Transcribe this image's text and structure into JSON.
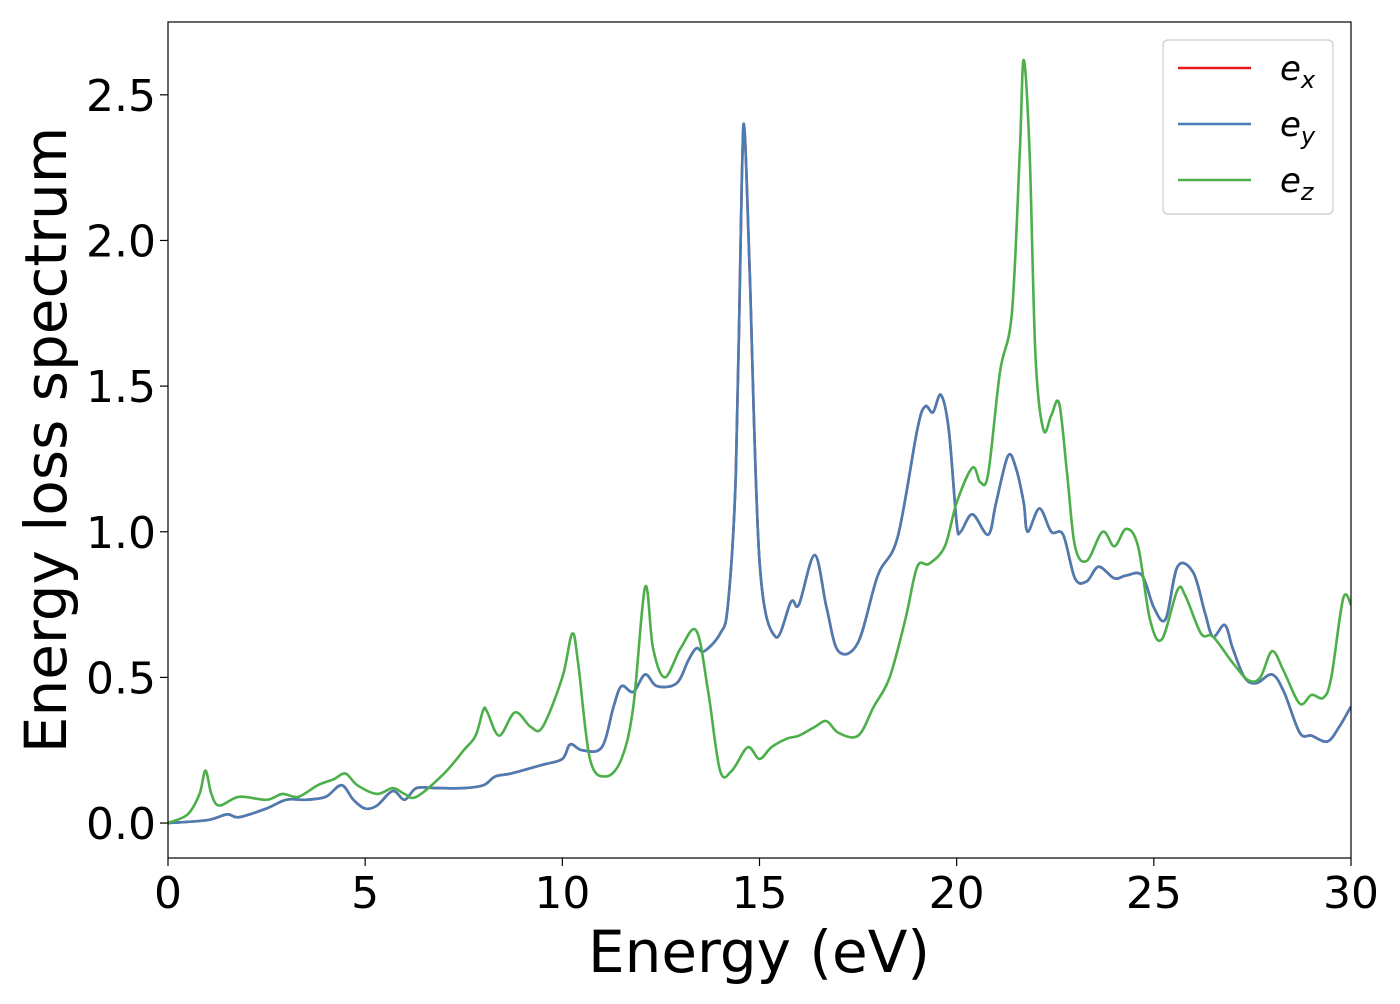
{
  "chart_data": {
    "type": "line",
    "title": "",
    "xlabel": "Energy (eV)",
    "ylabel": "Energy loss spectrum",
    "xlim": [
      0,
      30
    ],
    "ylim": [
      -0.12,
      2.75
    ],
    "xticks": [
      0,
      5,
      10,
      15,
      20,
      25,
      30
    ],
    "xtick_labels": [
      "0",
      "5",
      "10",
      "15",
      "20",
      "25",
      "30"
    ],
    "yticks": [
      0.0,
      0.5,
      1.0,
      1.5,
      2.0,
      2.5
    ],
    "ytick_labels": [
      "0.0",
      "0.5",
      "1.0",
      "1.5",
      "2.0",
      "2.5"
    ],
    "grid": false,
    "legend_position": "top-right",
    "series": [
      {
        "name": "e",
        "sub": "x",
        "color": "#e41a1c",
        "points": [
          [
            0,
            0
          ],
          [
            1,
            0.01
          ],
          [
            1.5,
            0.03
          ],
          [
            1.8,
            0.02
          ],
          [
            2.5,
            0.05
          ],
          [
            3,
            0.08
          ],
          [
            3.5,
            0.08
          ],
          [
            4,
            0.09
          ],
          [
            4.4,
            0.13
          ],
          [
            4.7,
            0.08
          ],
          [
            5,
            0.05
          ],
          [
            5.3,
            0.06
          ],
          [
            5.7,
            0.11
          ],
          [
            6,
            0.08
          ],
          [
            6.3,
            0.12
          ],
          [
            6.8,
            0.12
          ],
          [
            7.5,
            0.12
          ],
          [
            8,
            0.13
          ],
          [
            8.3,
            0.16
          ],
          [
            8.7,
            0.17
          ],
          [
            9.5,
            0.2
          ],
          [
            10,
            0.22
          ],
          [
            10.2,
            0.27
          ],
          [
            10.5,
            0.25
          ],
          [
            11,
            0.26
          ],
          [
            11.3,
            0.4
          ],
          [
            11.5,
            0.47
          ],
          [
            11.8,
            0.45
          ],
          [
            12.1,
            0.51
          ],
          [
            12.4,
            0.47
          ],
          [
            12.9,
            0.48
          ],
          [
            13.2,
            0.56
          ],
          [
            13.4,
            0.6
          ],
          [
            13.6,
            0.59
          ],
          [
            14,
            0.65
          ],
          [
            14.2,
            0.75
          ],
          [
            14.4,
            1.2
          ],
          [
            14.55,
            2.2
          ],
          [
            14.62,
            2.38
          ],
          [
            14.75,
            1.9
          ],
          [
            15,
            0.9
          ],
          [
            15.4,
            0.64
          ],
          [
            15.8,
            0.76
          ],
          [
            16,
            0.75
          ],
          [
            16.4,
            0.92
          ],
          [
            16.7,
            0.74
          ],
          [
            17,
            0.59
          ],
          [
            17.5,
            0.62
          ],
          [
            18,
            0.85
          ],
          [
            18.5,
            0.98
          ],
          [
            19,
            1.35
          ],
          [
            19.2,
            1.43
          ],
          [
            19.4,
            1.41
          ],
          [
            19.6,
            1.47
          ],
          [
            19.8,
            1.35
          ],
          [
            20,
            1.03
          ],
          [
            20.1,
            1.0
          ],
          [
            20.4,
            1.06
          ],
          [
            20.8,
            0.99
          ],
          [
            21,
            1.1
          ],
          [
            21.3,
            1.26
          ],
          [
            21.5,
            1.22
          ],
          [
            21.7,
            1.1
          ],
          [
            21.8,
            1.0
          ],
          [
            22.1,
            1.08
          ],
          [
            22.4,
            1.0
          ],
          [
            22.7,
            0.99
          ],
          [
            23,
            0.84
          ],
          [
            23.3,
            0.83
          ],
          [
            23.6,
            0.88
          ],
          [
            24,
            0.84
          ],
          [
            24.3,
            0.85
          ],
          [
            24.7,
            0.85
          ],
          [
            25,
            0.74
          ],
          [
            25.3,
            0.7
          ],
          [
            25.6,
            0.88
          ],
          [
            26,
            0.86
          ],
          [
            26.3,
            0.72
          ],
          [
            26.5,
            0.64
          ],
          [
            26.8,
            0.68
          ],
          [
            27,
            0.6
          ],
          [
            27.3,
            0.5
          ],
          [
            27.6,
            0.48
          ],
          [
            28,
            0.51
          ],
          [
            28.3,
            0.45
          ],
          [
            28.7,
            0.31
          ],
          [
            29,
            0.3
          ],
          [
            29.4,
            0.28
          ],
          [
            29.7,
            0.33
          ],
          [
            30,
            0.4
          ]
        ]
      },
      {
        "name": "e",
        "sub": "y",
        "color": "#4a7db3",
        "points": [
          [
            0,
            0
          ],
          [
            1,
            0.01
          ],
          [
            1.5,
            0.03
          ],
          [
            1.8,
            0.02
          ],
          [
            2.5,
            0.05
          ],
          [
            3,
            0.08
          ],
          [
            3.5,
            0.08
          ],
          [
            4,
            0.09
          ],
          [
            4.4,
            0.13
          ],
          [
            4.7,
            0.08
          ],
          [
            5,
            0.05
          ],
          [
            5.3,
            0.06
          ],
          [
            5.7,
            0.11
          ],
          [
            6,
            0.08
          ],
          [
            6.3,
            0.12
          ],
          [
            6.8,
            0.12
          ],
          [
            7.5,
            0.12
          ],
          [
            8,
            0.13
          ],
          [
            8.3,
            0.16
          ],
          [
            8.7,
            0.17
          ],
          [
            9.5,
            0.2
          ],
          [
            10,
            0.22
          ],
          [
            10.2,
            0.27
          ],
          [
            10.5,
            0.25
          ],
          [
            11,
            0.26
          ],
          [
            11.3,
            0.4
          ],
          [
            11.5,
            0.47
          ],
          [
            11.8,
            0.45
          ],
          [
            12.1,
            0.51
          ],
          [
            12.4,
            0.47
          ],
          [
            12.9,
            0.48
          ],
          [
            13.2,
            0.56
          ],
          [
            13.4,
            0.6
          ],
          [
            13.6,
            0.59
          ],
          [
            14,
            0.65
          ],
          [
            14.2,
            0.75
          ],
          [
            14.4,
            1.2
          ],
          [
            14.55,
            2.2
          ],
          [
            14.62,
            2.38
          ],
          [
            14.75,
            1.9
          ],
          [
            15,
            0.9
          ],
          [
            15.4,
            0.64
          ],
          [
            15.8,
            0.76
          ],
          [
            16,
            0.75
          ],
          [
            16.4,
            0.92
          ],
          [
            16.7,
            0.74
          ],
          [
            17,
            0.59
          ],
          [
            17.5,
            0.62
          ],
          [
            18,
            0.85
          ],
          [
            18.5,
            0.98
          ],
          [
            19,
            1.35
          ],
          [
            19.2,
            1.43
          ],
          [
            19.4,
            1.41
          ],
          [
            19.6,
            1.47
          ],
          [
            19.8,
            1.35
          ],
          [
            20,
            1.03
          ],
          [
            20.1,
            1.0
          ],
          [
            20.4,
            1.06
          ],
          [
            20.8,
            0.99
          ],
          [
            21,
            1.1
          ],
          [
            21.3,
            1.26
          ],
          [
            21.5,
            1.22
          ],
          [
            21.7,
            1.1
          ],
          [
            21.8,
            1.0
          ],
          [
            22.1,
            1.08
          ],
          [
            22.4,
            1.0
          ],
          [
            22.7,
            0.99
          ],
          [
            23,
            0.84
          ],
          [
            23.3,
            0.83
          ],
          [
            23.6,
            0.88
          ],
          [
            24,
            0.84
          ],
          [
            24.3,
            0.85
          ],
          [
            24.7,
            0.85
          ],
          [
            25,
            0.74
          ],
          [
            25.3,
            0.7
          ],
          [
            25.6,
            0.88
          ],
          [
            26,
            0.86
          ],
          [
            26.3,
            0.72
          ],
          [
            26.5,
            0.64
          ],
          [
            26.8,
            0.68
          ],
          [
            27,
            0.6
          ],
          [
            27.3,
            0.5
          ],
          [
            27.6,
            0.48
          ],
          [
            28,
            0.51
          ],
          [
            28.3,
            0.45
          ],
          [
            28.7,
            0.31
          ],
          [
            29,
            0.3
          ],
          [
            29.4,
            0.28
          ],
          [
            29.7,
            0.33
          ],
          [
            30,
            0.4
          ]
        ]
      },
      {
        "name": "e",
        "sub": "z",
        "color": "#4daf4a",
        "points": [
          [
            0,
            0
          ],
          [
            0.5,
            0.03
          ],
          [
            0.8,
            0.1
          ],
          [
            0.95,
            0.18
          ],
          [
            1.1,
            0.1
          ],
          [
            1.3,
            0.06
          ],
          [
            1.8,
            0.09
          ],
          [
            2.5,
            0.08
          ],
          [
            2.9,
            0.1
          ],
          [
            3.3,
            0.09
          ],
          [
            3.8,
            0.13
          ],
          [
            4.2,
            0.15
          ],
          [
            4.5,
            0.17
          ],
          [
            4.8,
            0.13
          ],
          [
            5.3,
            0.1
          ],
          [
            5.7,
            0.12
          ],
          [
            6,
            0.1
          ],
          [
            6.3,
            0.09
          ],
          [
            7,
            0.17
          ],
          [
            7.5,
            0.25
          ],
          [
            7.8,
            0.3
          ],
          [
            8,
            0.39
          ],
          [
            8.1,
            0.38
          ],
          [
            8.4,
            0.3
          ],
          [
            8.8,
            0.38
          ],
          [
            9.2,
            0.33
          ],
          [
            9.5,
            0.33
          ],
          [
            10,
            0.5
          ],
          [
            10.25,
            0.65
          ],
          [
            10.4,
            0.55
          ],
          [
            10.7,
            0.22
          ],
          [
            11.1,
            0.16
          ],
          [
            11.5,
            0.22
          ],
          [
            11.8,
            0.4
          ],
          [
            12.1,
            0.81
          ],
          [
            12.3,
            0.6
          ],
          [
            12.6,
            0.5
          ],
          [
            13,
            0.6
          ],
          [
            13.4,
            0.66
          ],
          [
            13.7,
            0.45
          ],
          [
            14,
            0.18
          ],
          [
            14.3,
            0.18
          ],
          [
            14.7,
            0.26
          ],
          [
            15,
            0.22
          ],
          [
            15.3,
            0.26
          ],
          [
            15.7,
            0.29
          ],
          [
            16,
            0.3
          ],
          [
            16.4,
            0.33
          ],
          [
            16.7,
            0.35
          ],
          [
            17,
            0.31
          ],
          [
            17.5,
            0.3
          ],
          [
            17.9,
            0.4
          ],
          [
            18.3,
            0.5
          ],
          [
            18.7,
            0.7
          ],
          [
            19,
            0.88
          ],
          [
            19.3,
            0.89
          ],
          [
            19.7,
            0.95
          ],
          [
            20,
            1.1
          ],
          [
            20.4,
            1.22
          ],
          [
            20.6,
            1.17
          ],
          [
            20.8,
            1.2
          ],
          [
            21.1,
            1.55
          ],
          [
            21.4,
            1.75
          ],
          [
            21.6,
            2.3
          ],
          [
            21.7,
            2.62
          ],
          [
            21.85,
            2.3
          ],
          [
            22,
            1.6
          ],
          [
            22.2,
            1.35
          ],
          [
            22.4,
            1.4
          ],
          [
            22.6,
            1.44
          ],
          [
            22.8,
            1.2
          ],
          [
            23,
            0.95
          ],
          [
            23.3,
            0.9
          ],
          [
            23.7,
            1.0
          ],
          [
            24,
            0.95
          ],
          [
            24.3,
            1.01
          ],
          [
            24.6,
            0.95
          ],
          [
            24.9,
            0.7
          ],
          [
            25.2,
            0.63
          ],
          [
            25.6,
            0.8
          ],
          [
            25.8,
            0.78
          ],
          [
            26.2,
            0.65
          ],
          [
            26.5,
            0.64
          ],
          [
            27,
            0.55
          ],
          [
            27.4,
            0.49
          ],
          [
            27.7,
            0.5
          ],
          [
            28,
            0.59
          ],
          [
            28.3,
            0.52
          ],
          [
            28.7,
            0.41
          ],
          [
            29,
            0.44
          ],
          [
            29.3,
            0.43
          ],
          [
            29.5,
            0.5
          ],
          [
            29.8,
            0.77
          ],
          [
            30,
            0.75
          ]
        ]
      }
    ]
  }
}
